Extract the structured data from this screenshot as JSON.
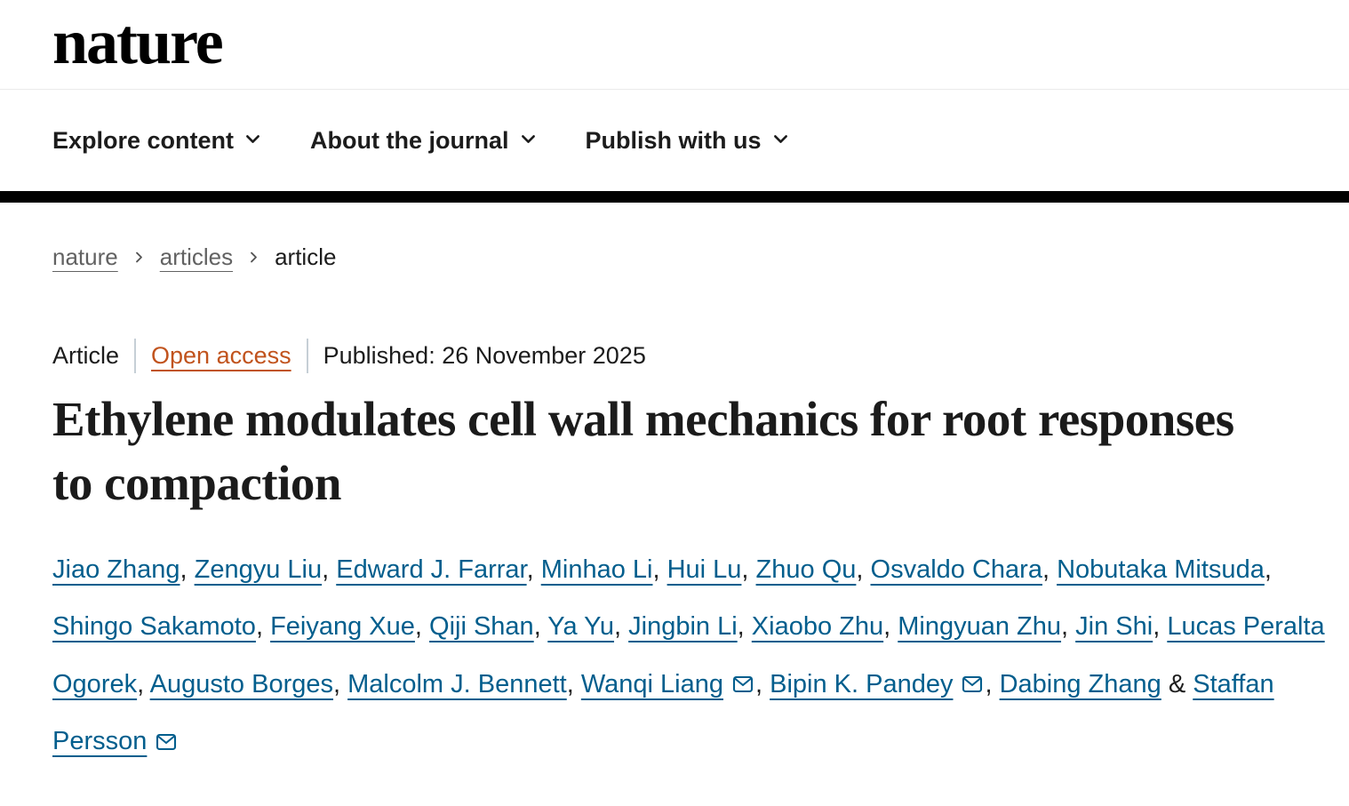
{
  "header": {
    "logo": "nature",
    "nav_items": [
      {
        "label": "Explore content"
      },
      {
        "label": "About the journal"
      },
      {
        "label": "Publish with us"
      }
    ]
  },
  "icons": {
    "nav_chevron": "chevron-down",
    "breadcrumb_separator": "chevron-right",
    "author_email": "envelope"
  },
  "breadcrumb": {
    "items": [
      {
        "label": "nature",
        "link": true
      },
      {
        "label": "articles",
        "link": true
      },
      {
        "label": "article",
        "link": false
      }
    ]
  },
  "meta": {
    "type": "Article",
    "access_label": "Open access",
    "published": "Published: 26 November 2025"
  },
  "title": "Ethylene modulates cell wall mechanics for root responses to compaction",
  "authors": {
    "separator": ", ",
    "ampersand": " & ",
    "list": [
      {
        "name": "Jiao Zhang",
        "email": false
      },
      {
        "name": "Zengyu Liu",
        "email": false
      },
      {
        "name": "Edward J. Farrar",
        "email": false
      },
      {
        "name": "Minhao Li",
        "email": false
      },
      {
        "name": "Hui Lu",
        "email": false
      },
      {
        "name": "Zhuo Qu",
        "email": false
      },
      {
        "name": "Osvaldo Chara",
        "email": false
      },
      {
        "name": "Nobutaka Mitsuda",
        "email": false
      },
      {
        "name": "Shingo Sakamoto",
        "email": false
      },
      {
        "name": "Feiyang Xue",
        "email": false
      },
      {
        "name": "Qiji Shan",
        "email": false
      },
      {
        "name": "Ya Yu",
        "email": false
      },
      {
        "name": "Jingbin Li",
        "email": false
      },
      {
        "name": "Xiaobo Zhu",
        "email": false
      },
      {
        "name": "Mingyuan Zhu",
        "email": false
      },
      {
        "name": "Jin Shi",
        "email": false
      },
      {
        "name": "Lucas Peralta Ogorek",
        "email": false
      },
      {
        "name": "Augusto Borges",
        "email": false
      },
      {
        "name": "Malcolm J. Bennett",
        "email": false
      },
      {
        "name": "Wanqi Liang",
        "email": true
      },
      {
        "name": "Bipin K. Pandey",
        "email": true
      },
      {
        "name": "Dabing Zhang",
        "email": false
      },
      {
        "name": "Staffan Persson",
        "email": true
      }
    ]
  },
  "colors": {
    "author_link_blue": "#025e8d",
    "open_access_orange": "#c1531d",
    "text_dark": "#1f1f1f",
    "breadcrumb_gray": "#626262",
    "divider_bar_black": "#000000",
    "meta_separator_gray": "#c6cfd6"
  }
}
